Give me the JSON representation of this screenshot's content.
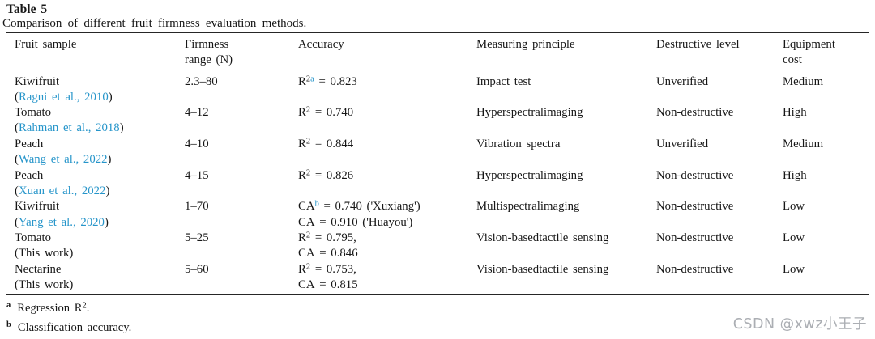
{
  "doc": {
    "title": "Table 5",
    "caption": "Comparison of different fruit firmness evaluation methods.",
    "watermark": "CSDN @xwz小王子"
  },
  "table": {
    "headers": [
      {
        "l1": "Fruit sample",
        "l2": ""
      },
      {
        "l1": "Firmness",
        "l2": "range (N)"
      },
      {
        "l1": "Accuracy",
        "l2": ""
      },
      {
        "l1": "Measuring principle",
        "l2": ""
      },
      {
        "l1": "Destructive level",
        "l2": ""
      },
      {
        "l1": "Equipment",
        "l2": "cost"
      }
    ],
    "rows": [
      {
        "sample": "Kiwifruit",
        "cite": {
          "pre": "(",
          "link": "Ragni et al., 2010",
          "post": ")"
        },
        "firmness": "2.3–80",
        "acc1": {
          "base": "R",
          "sup2": "2",
          "supnote": "a",
          "rest": " = 0.823"
        },
        "principle": "Impact test",
        "destructive": "Unverified",
        "cost": "Medium"
      },
      {
        "sample": "Tomato",
        "cite": {
          "pre": "(",
          "link": "Rahman et al., 2018",
          "post": ")"
        },
        "firmness": "4–12",
        "acc1": {
          "base": "R",
          "sup2": "2",
          "supnote": "",
          "rest": " = 0.740"
        },
        "principle": "Hyperspectralimaging",
        "destructive": "Non-destructive",
        "cost": "High"
      },
      {
        "sample": "Peach",
        "cite": {
          "pre": "(",
          "link": "Wang et al., 2022",
          "post": ")"
        },
        "firmness": "4–10",
        "acc1": {
          "base": "R",
          "sup2": "2",
          "supnote": "",
          "rest": " = 0.844"
        },
        "principle": "Vibration spectra",
        "destructive": "Unverified",
        "cost": "Medium"
      },
      {
        "sample": "Peach",
        "cite": {
          "pre": "(",
          "link": "Xuan et al., 2022",
          "post": ")"
        },
        "firmness": "4–15",
        "acc1": {
          "base": "R",
          "sup2": "2",
          "supnote": "",
          "rest": " = 0.826"
        },
        "principle": "Hyperspectralimaging",
        "destructive": "Non-destructive",
        "cost": "High"
      },
      {
        "sample": "Kiwifruit",
        "cite": {
          "pre": "(",
          "link": "Yang et al., 2020",
          "post": ")"
        },
        "firmness": "1–70",
        "acc1": {
          "base": "CA",
          "sup2": "",
          "supnote": "b",
          "rest": " = 0.740 ('Xuxiang')"
        },
        "acc2": {
          "base": "CA",
          "sup2": "",
          "supnote": "",
          "rest": " = 0.910 ('Huayou')"
        },
        "principle": "Multispectralimaging",
        "destructive": "Non-destructive",
        "cost": "Low"
      },
      {
        "sample": "Tomato",
        "cite_plain": "(This work)",
        "firmness": "5–25",
        "acc1": {
          "base": "R",
          "sup2": "2",
          "supnote": "",
          "rest": " = 0.795,"
        },
        "acc2": {
          "base": "CA",
          "sup2": "",
          "supnote": "",
          "rest": " = 0.846"
        },
        "principle": "Vision-basedtactile sensing",
        "destructive": "Non-destructive",
        "cost": "Low"
      },
      {
        "sample": "Nectarine",
        "cite_plain": "(This work)",
        "firmness": "5–60",
        "acc1": {
          "base": "R",
          "sup2": "2",
          "supnote": "",
          "rest": " = 0.753,"
        },
        "acc2": {
          "base": "CA",
          "sup2": "",
          "supnote": "",
          "rest": " = 0.815"
        },
        "principle": "Vision-basedtactile sensing",
        "destructive": "Non-destructive",
        "cost": "Low"
      }
    ]
  },
  "footnotes": [
    {
      "marker": "a",
      "pre": "Regression R",
      "sup": "2",
      "post": "."
    },
    {
      "marker": "b",
      "pre": "Classification accuracy.",
      "sup": "",
      "post": ""
    }
  ]
}
